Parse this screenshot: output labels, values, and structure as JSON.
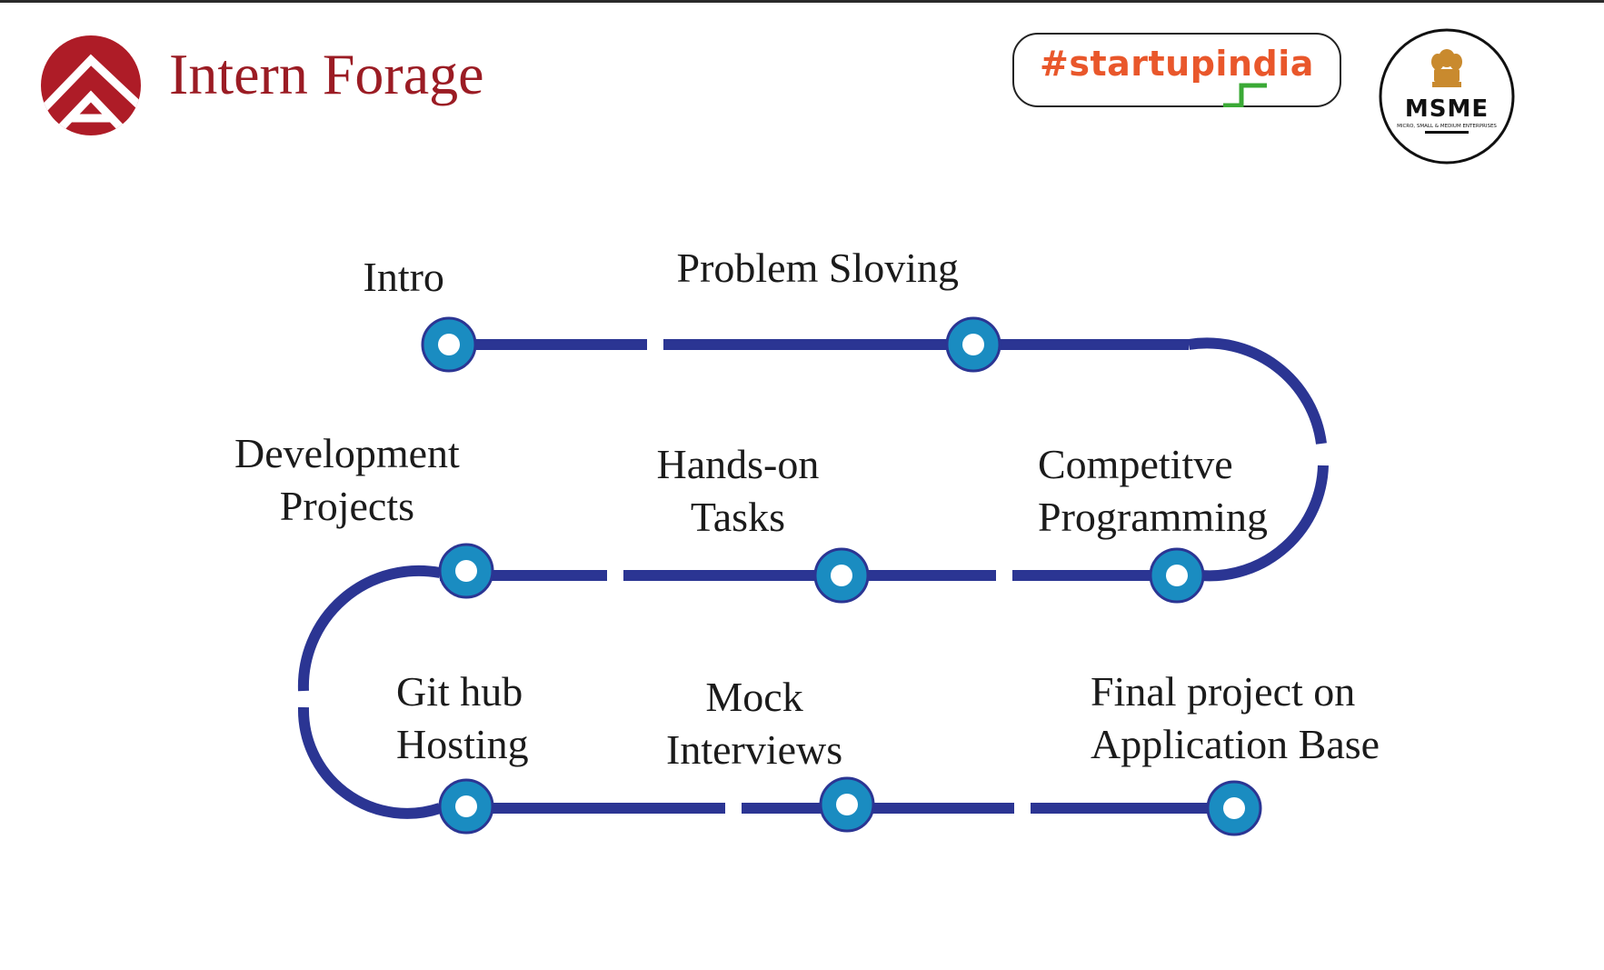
{
  "header": {
    "brand_name": "Intern Forage",
    "startup_badge_text": "#startupindia",
    "msme_seal": {
      "acronym": "MSME",
      "caption": "MICRO, SMALL & MEDIUM ENTERPRISES"
    }
  },
  "roadmap": {
    "steps": [
      {
        "id": "intro",
        "lines": [
          "Intro"
        ]
      },
      {
        "id": "problem-solving",
        "lines": [
          "Problem Sloving"
        ]
      },
      {
        "id": "competitive-programming",
        "lines": [
          "Competitve",
          "Programming"
        ]
      },
      {
        "id": "hands-on-tasks",
        "lines": [
          "Hands-on",
          "Tasks"
        ]
      },
      {
        "id": "development-projects",
        "lines": [
          "Development",
          "Projects"
        ]
      },
      {
        "id": "github-hosting",
        "lines": [
          "Git hub",
          "Hosting"
        ]
      },
      {
        "id": "mock-interviews",
        "lines": [
          "Mock",
          "Interviews"
        ]
      },
      {
        "id": "final-project",
        "lines": [
          "Final project on",
          "Application Base"
        ]
      }
    ]
  },
  "colors": {
    "brand_red": "#9b1c24",
    "path_blue": "#2b3593",
    "node_blue": "#1a8cc1",
    "startup_orange": "#e9572b",
    "startup_green": "#3aa935"
  }
}
